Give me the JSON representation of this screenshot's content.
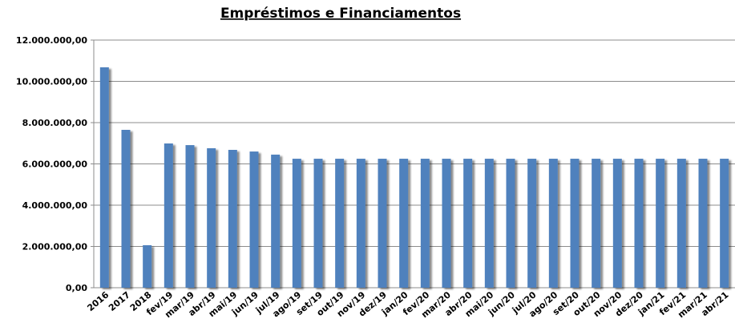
{
  "chart_data": {
    "type": "bar",
    "title": "Empréstimos  e Financiamentos",
    "categories": [
      "2016",
      "2017",
      "2018",
      "fev/19",
      "mar/19",
      "abr/19",
      "mai/19",
      "jun/19",
      "jul/19",
      "ago/19",
      "set/19",
      "out/19",
      "nov/19",
      "dez/19",
      "jan/20",
      "fev/20",
      "mar/20",
      "abr/20",
      "mai/20",
      "jun/20",
      "jul/20",
      "ago/20",
      "set/20",
      "out/20",
      "nov/20",
      "dez/20",
      "jan/21",
      "fev/21",
      "mar/21",
      "abr/21"
    ],
    "values": [
      10680000,
      7650000,
      2060000,
      6990000,
      6910000,
      6760000,
      6680000,
      6600000,
      6450000,
      6250000,
      6250000,
      6250000,
      6250000,
      6250000,
      6250000,
      6250000,
      6250000,
      6250000,
      6250000,
      6250000,
      6250000,
      6250000,
      6250000,
      6250000,
      6250000,
      6250000,
      6250000,
      6250000,
      6250000,
      6250000
    ],
    "color": "#4f81bd",
    "ylim": [
      0,
      12000000
    ],
    "yticks": [
      {
        "value": 0,
        "label": "0,00"
      },
      {
        "value": 2000000,
        "label": "2.000.000,00"
      },
      {
        "value": 4000000,
        "label": "4.000.000,00"
      },
      {
        "value": 6000000,
        "label": "6.000.000,00"
      },
      {
        "value": 8000000,
        "label": "8.000.000,00"
      },
      {
        "value": 10000000,
        "label": "10.000.000,00"
      },
      {
        "value": 12000000,
        "label": "12.000.000,00"
      }
    ],
    "grid": true
  }
}
